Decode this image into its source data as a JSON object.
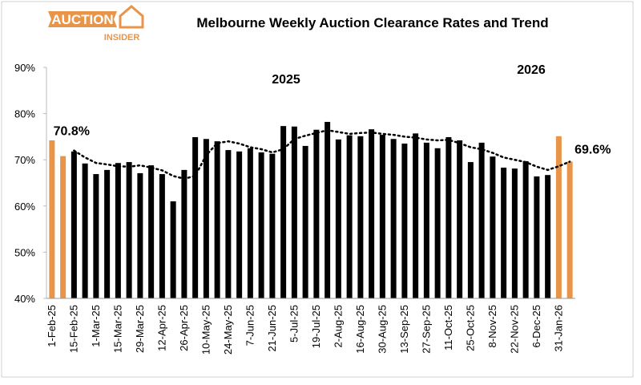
{
  "logo": {
    "main": "AUCTION",
    "sub": "INSIDER"
  },
  "chart_data": {
    "type": "bar",
    "title": "Melbourne Weekly Auction Clearance Rates and Trend",
    "annotations": [
      {
        "text": "2025"
      },
      {
        "text": "2026"
      }
    ],
    "categories": [
      "1-Feb-25",
      null,
      "15-Feb-25",
      null,
      "1-Mar-25",
      null,
      "15-Mar-25",
      null,
      "29-Mar-25",
      null,
      "12-Apr-25",
      null,
      "26-Apr-25",
      null,
      "10-May-25",
      null,
      "24-May-25",
      null,
      "7-Jun-25",
      null,
      "21-Jun-25",
      null,
      "5-Jul-25",
      null,
      "19-Jul-25",
      null,
      "2-Aug-25",
      null,
      "16-Aug-25",
      null,
      "30-Aug-25",
      null,
      "13-Sep-25",
      null,
      "27-Sep-25",
      null,
      "11-Oct-25",
      null,
      "25-Oct-25",
      null,
      "8-Nov-25",
      null,
      "22-Nov-25",
      null,
      "6-Dec-25",
      null,
      "31-Jan-26",
      null
    ],
    "values": [
      74.2,
      70.8,
      71.8,
      69.2,
      66.9,
      67.8,
      69.3,
      69.5,
      67.1,
      68.8,
      66.9,
      61.0,
      67.8,
      74.9,
      74.5,
      74.0,
      72.1,
      71.8,
      72.5,
      71.6,
      71.3,
      77.3,
      77.2,
      73.0,
      76.5,
      78.2,
      74.4,
      75.3,
      75.1,
      76.6,
      75.4,
      74.5,
      73.5,
      75.7,
      73.7,
      72.5,
      74.9,
      74.2,
      69.5,
      73.7,
      70.7,
      68.3,
      68.1,
      69.7,
      66.4,
      66.7,
      75.1,
      69.6
    ],
    "value_labels": [
      null,
      "70.8%",
      null,
      null,
      null,
      null,
      null,
      null,
      null,
      null,
      null,
      null,
      null,
      null,
      null,
      null,
      null,
      null,
      null,
      null,
      null,
      null,
      null,
      null,
      null,
      null,
      null,
      null,
      null,
      null,
      null,
      null,
      null,
      null,
      null,
      null,
      null,
      null,
      null,
      null,
      null,
      null,
      null,
      null,
      null,
      null,
      null,
      "69.6%"
    ],
    "bar_colors": [
      "#e8954a",
      "#e8954a",
      "#000000",
      "#000000",
      "#000000",
      "#000000",
      "#000000",
      "#000000",
      "#000000",
      "#000000",
      "#000000",
      "#000000",
      "#000000",
      "#000000",
      "#000000",
      "#000000",
      "#000000",
      "#000000",
      "#000000",
      "#000000",
      "#000000",
      "#000000",
      "#000000",
      "#000000",
      "#000000",
      "#000000",
      "#000000",
      "#000000",
      "#000000",
      "#000000",
      "#000000",
      "#000000",
      "#000000",
      "#000000",
      "#000000",
      "#000000",
      "#000000",
      "#000000",
      "#000000",
      "#000000",
      "#000000",
      "#000000",
      "#000000",
      "#000000",
      "#000000",
      "#000000",
      "#e8954a",
      "#e8954a"
    ],
    "trend": [
      null,
      null,
      72.0,
      70.5,
      69.3,
      69.0,
      68.6,
      68.5,
      68.8,
      68.3,
      67.7,
      66.5,
      65.9,
      66.5,
      71.0,
      73.6,
      74.0,
      73.5,
      72.7,
      72.3,
      71.6,
      72.3,
      74.5,
      75.2,
      75.8,
      76.4,
      76.0,
      75.6,
      75.8,
      75.9,
      75.6,
      75.4,
      75.0,
      74.8,
      74.4,
      74.2,
      74.3,
      73.6,
      72.7,
      72.3,
      71.5,
      70.5,
      70.0,
      69.5,
      68.5,
      67.8,
      68.6,
      69.6
    ],
    "trend_color": "#000000",
    "ylim": [
      40,
      90
    ],
    "yticks": [
      {
        "value": 40,
        "label": "40%"
      },
      {
        "value": 50,
        "label": "50%"
      },
      {
        "value": 60,
        "label": "60%"
      },
      {
        "value": 70,
        "label": "70%"
      },
      {
        "value": 80,
        "label": "80%"
      },
      {
        "value": 90,
        "label": "90%"
      }
    ],
    "grid": false
  }
}
